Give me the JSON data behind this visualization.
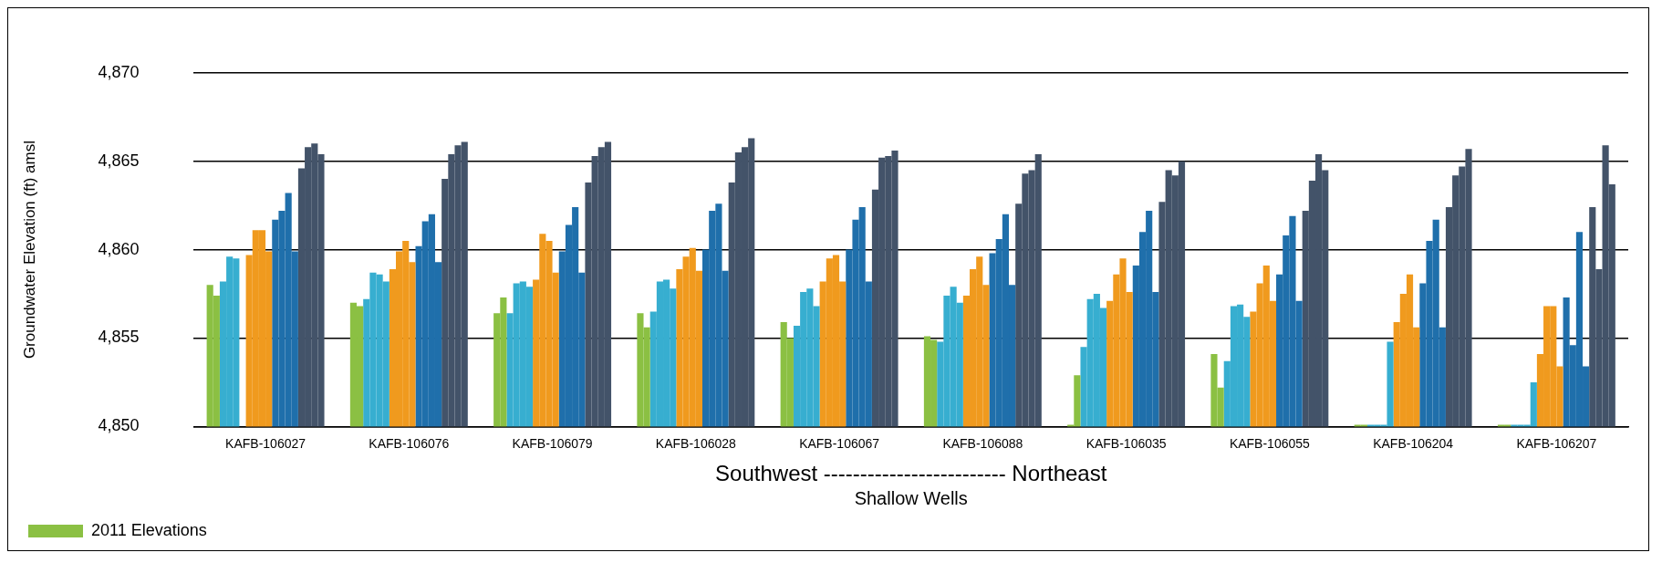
{
  "chart_data": {
    "type": "bar",
    "xlabel": "Southwest ------------------------- Northeast",
    "ylabel": "Groundwater Elevation (ft) amsl",
    "annotations": [
      "Shallow Wells"
    ],
    "categories": [
      "KAFB-106027",
      "KAFB-106076",
      "KAFB-106079",
      "KAFB-106028",
      "KAFB-106067",
      "KAFB-106088",
      "KAFB-106035",
      "KAFB-106055",
      "KAFB-106204",
      "KAFB-106207"
    ],
    "ylim": [
      4850,
      4870
    ],
    "yticks": [
      {
        "value": 4850,
        "label": "4,850"
      },
      {
        "value": 4855,
        "label": "4,855"
      },
      {
        "value": 4860,
        "label": "4,860"
      },
      {
        "value": 4865,
        "label": "4,865"
      },
      {
        "value": 4870,
        "label": "4,870"
      }
    ],
    "grid": "y",
    "legend": "bottom left",
    "series": [
      {
        "name": "2011 Elevations",
        "color": "#8bc043",
        "values": [
          4858.0,
          4857.0,
          4856.4,
          4856.4,
          4855.9,
          4855.1,
          4850.1,
          4854.1,
          4850.1,
          4850.1
        ]
      },
      {
        "color": "#8bc043",
        "values": [
          4857.4,
          4856.8,
          4857.3,
          4855.6,
          4855.0,
          4854.9,
          4852.9,
          4852.2,
          4850.1,
          4850.1
        ]
      },
      {
        "color": "#37aed0",
        "values": [
          4858.2,
          4857.2,
          4856.4,
          4856.5,
          4855.7,
          4854.8,
          4854.5,
          4853.7,
          4850.1,
          4850.1
        ]
      },
      {
        "color": "#37aed0",
        "values": [
          4859.6,
          4858.7,
          4858.1,
          4858.2,
          4857.6,
          4857.4,
          4857.2,
          4856.8,
          4850.1,
          4850.1
        ]
      },
      {
        "color": "#37aed0",
        "values": [
          4859.5,
          4858.6,
          4858.2,
          4858.3,
          4857.8,
          4857.9,
          4857.5,
          4856.9,
          4850.1,
          4850.1
        ]
      },
      {
        "color": "#37aed0",
        "values": [
          null,
          4858.2,
          4857.9,
          4857.8,
          4856.8,
          4857.0,
          4856.7,
          4856.2,
          4854.8,
          4852.5
        ]
      },
      {
        "color": "#f09a1e",
        "values": [
          4859.7,
          4858.9,
          4858.3,
          4858.9,
          4858.2,
          4857.4,
          4857.1,
          4856.5,
          4855.9,
          4854.1
        ]
      },
      {
        "color": "#f09a1e",
        "values": [
          4861.1,
          4859.9,
          4860.9,
          4859.6,
          4859.5,
          4858.9,
          4858.6,
          4858.1,
          4857.5,
          4856.8
        ]
      },
      {
        "color": "#f09a1e",
        "values": [
          4861.1,
          4860.5,
          4860.5,
          4860.1,
          4859.7,
          4859.6,
          4859.5,
          4859.1,
          4858.6,
          4856.8
        ]
      },
      {
        "color": "#f09a1e",
        "values": [
          4859.9,
          4859.3,
          4858.7,
          4858.8,
          4858.2,
          4858.0,
          4857.6,
          4857.1,
          4855.6,
          4853.4
        ]
      },
      {
        "color": "#1f6fab",
        "values": [
          4861.7,
          4860.2,
          4859.9,
          4860.0,
          4860.0,
          4859.8,
          4859.1,
          4858.6,
          4858.1,
          4857.3
        ]
      },
      {
        "color": "#1f6fab",
        "values": [
          4862.2,
          4861.6,
          4861.4,
          4862.2,
          4861.7,
          4860.6,
          4861.0,
          4860.8,
          4860.5,
          4854.6
        ]
      },
      {
        "color": "#1f6fab",
        "values": [
          4863.2,
          4862.0,
          4862.4,
          4862.6,
          4862.4,
          4862.0,
          4862.2,
          4861.9,
          4861.7,
          4861.0
        ]
      },
      {
        "color": "#1f6fab",
        "values": [
          4859.9,
          4859.3,
          4858.7,
          4858.8,
          4858.2,
          4858.0,
          4857.6,
          4857.1,
          4855.6,
          4853.4
        ]
      },
      {
        "color": "#435369",
        "values": [
          4864.6,
          4864.0,
          4863.8,
          4863.8,
          4863.4,
          4862.6,
          4862.7,
          4862.2,
          4862.4,
          4862.4
        ]
      },
      {
        "color": "#435369",
        "values": [
          4865.8,
          4865.4,
          4865.3,
          4865.5,
          4865.2,
          4864.3,
          4864.5,
          4863.9,
          4864.2,
          4858.9
        ]
      },
      {
        "color": "#435369",
        "values": [
          4866.0,
          4865.9,
          4865.8,
          4865.8,
          4865.3,
          4864.5,
          4864.2,
          4865.4,
          4864.7,
          4865.9
        ]
      },
      {
        "color": "#435369",
        "values": [
          4865.4,
          4866.1,
          4866.1,
          4866.3,
          4865.6,
          4865.4,
          4865.0,
          4864.5,
          4865.7,
          4863.7
        ]
      }
    ]
  }
}
